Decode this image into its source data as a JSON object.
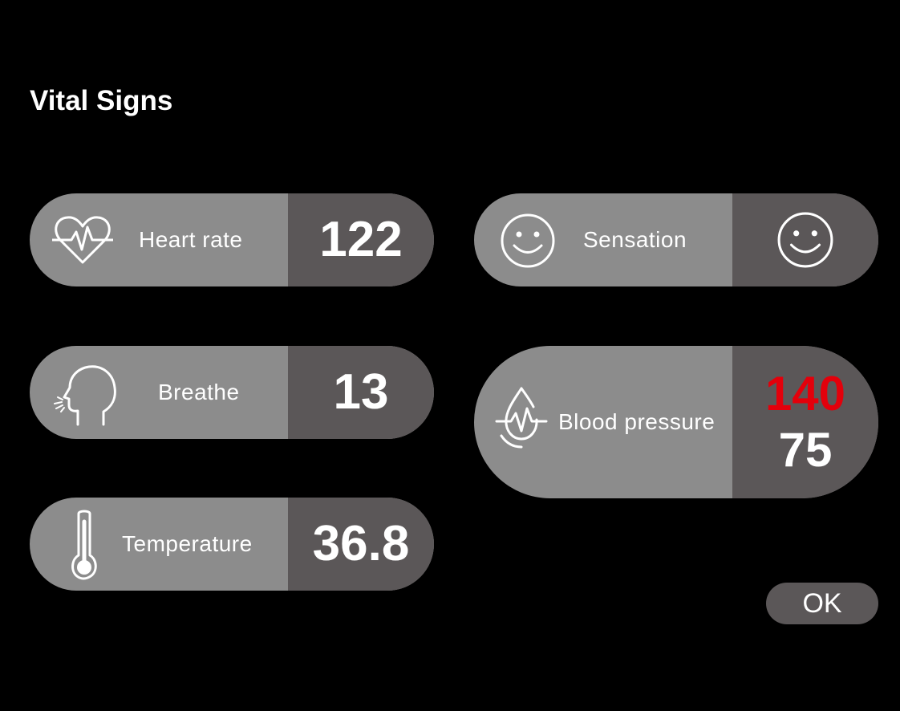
{
  "header": {
    "title": "Vital Signs"
  },
  "vitals": {
    "heart_rate": {
      "label": "Heart rate",
      "value": "122",
      "icon": "heart-pulse-icon"
    },
    "sensation": {
      "label": "Sensation",
      "icon": "smiley-face-icon",
      "value_icon": "smiley-face-icon"
    },
    "breathe": {
      "label": "Breathe",
      "value": "13",
      "icon": "head-breath-icon"
    },
    "blood_pressure": {
      "label": "Blood pressure",
      "systolic": "140",
      "diastolic": "75",
      "icon": "blood-drop-pulse-icon"
    },
    "temperature": {
      "label": "Temperature",
      "value": "36.8",
      "icon": "thermometer-icon"
    }
  },
  "actions": {
    "ok_label": "OK"
  },
  "colors": {
    "background": "#000000",
    "card_label_bg": "#8c8c8c",
    "card_value_bg": "#5b5758",
    "text": "#ffffff",
    "alert": "#e3000b"
  }
}
